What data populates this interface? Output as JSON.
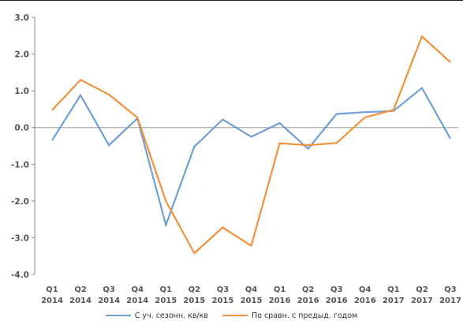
{
  "chart_data": {
    "type": "line",
    "title": "",
    "xlabel": "",
    "ylabel": "",
    "ylim": [
      -4.0,
      3.0
    ],
    "yticks": [
      "3.0",
      "2.0",
      "1.0",
      "0.0",
      "-1.0",
      "-2.0",
      "-3.0",
      "-4.0"
    ],
    "ytick_values": [
      3,
      2,
      1,
      0,
      -1,
      -2,
      -3,
      -4
    ],
    "grid": false,
    "legend_position": "bottom",
    "categories": [
      {
        "q": "Q1",
        "y": "2014"
      },
      {
        "q": "Q2",
        "y": "2014"
      },
      {
        "q": "Q3",
        "y": "2014"
      },
      {
        "q": "Q4",
        "y": "2014"
      },
      {
        "q": "Q1",
        "y": "2015"
      },
      {
        "q": "Q2",
        "y": "2015"
      },
      {
        "q": "Q3",
        "y": "2015"
      },
      {
        "q": "Q4",
        "y": "2015"
      },
      {
        "q": "Q1",
        "y": "2016"
      },
      {
        "q": "Q2",
        "y": "2016"
      },
      {
        "q": "Q3",
        "y": "2016"
      },
      {
        "q": "Q4",
        "y": "2016"
      },
      {
        "q": "Q1",
        "y": "2017"
      },
      {
        "q": "Q2",
        "y": "2017"
      },
      {
        "q": "Q3",
        "y": "2017"
      }
    ],
    "series": [
      {
        "name": "С уч. сезонн. кв/кв",
        "color": "#6fa0d6",
        "values": [
          -0.35,
          0.88,
          -0.48,
          0.25,
          -2.65,
          -0.52,
          0.22,
          -0.25,
          0.12,
          -0.58,
          0.37,
          0.42,
          0.45,
          1.08,
          -0.3
        ]
      },
      {
        "name": "По сравн. с предыд. годом",
        "color": "#f2913a",
        "values": [
          0.47,
          1.3,
          0.9,
          0.27,
          -2.0,
          -3.42,
          -2.72,
          -3.22,
          -0.43,
          -0.48,
          -0.42,
          0.28,
          0.48,
          2.48,
          1.78
        ]
      }
    ]
  }
}
